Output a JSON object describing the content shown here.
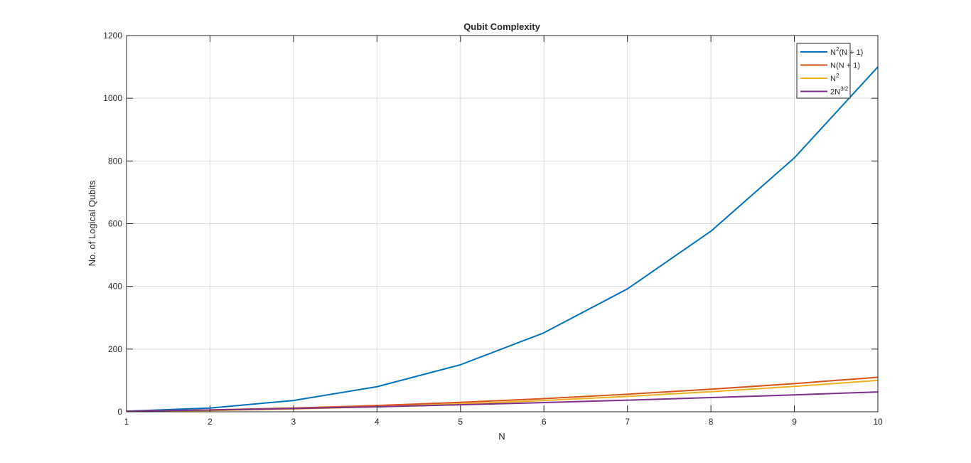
{
  "chart_data": {
    "type": "line",
    "title": "Qubit Complexity",
    "xlabel": "N",
    "ylabel": "No. of Logical Qubits",
    "xlim": [
      1,
      10
    ],
    "ylim": [
      0,
      1200
    ],
    "xticks": [
      1,
      2,
      3,
      4,
      5,
      6,
      7,
      8,
      9,
      10
    ],
    "yticks": [
      0,
      200,
      400,
      600,
      800,
      1000,
      1200
    ],
    "grid": true,
    "legend_position": "top-right",
    "x": [
      1,
      2,
      3,
      4,
      5,
      6,
      7,
      8,
      9,
      10
    ],
    "series": [
      {
        "name": "N²(N + 1)",
        "legend_base": "N",
        "legend_sup": "2",
        "legend_rest": "(N + 1)",
        "color": "#0072BD",
        "values": [
          2,
          12,
          36,
          80,
          150,
          252,
          392,
          576,
          810,
          1100
        ]
      },
      {
        "name": "N(N + 1)",
        "legend_base": "N(N + 1)",
        "legend_sup": "",
        "legend_rest": "",
        "color": "#D95319",
        "values": [
          2,
          6,
          12,
          20,
          30,
          42,
          56,
          72,
          90,
          110
        ]
      },
      {
        "name": "N²",
        "legend_base": "N",
        "legend_sup": "2",
        "legend_rest": "",
        "color": "#EDB120",
        "values": [
          1,
          4,
          9,
          16,
          25,
          36,
          49,
          64,
          81,
          100
        ]
      },
      {
        "name": "2N³ᐟ²",
        "legend_base": "2N",
        "legend_sup": "3/2",
        "legend_rest": "",
        "color": "#7E2F8E",
        "values": [
          2,
          5.66,
          10.39,
          16,
          22.36,
          29.39,
          37.04,
          45.25,
          54,
          63.25
        ]
      }
    ]
  }
}
